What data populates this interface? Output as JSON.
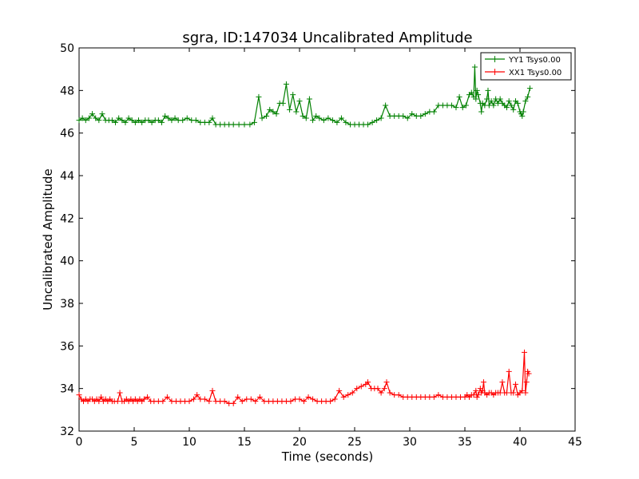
{
  "chart_data": {
    "type": "line",
    "title": "sgra, ID:147034 Uncalibrated Amplitude",
    "xlabel": "Time (seconds)",
    "ylabel": "Uncalibrated Amplitude",
    "xlim": [
      0,
      45
    ],
    "ylim": [
      32,
      50
    ],
    "xticks": [
      0,
      5,
      10,
      15,
      20,
      25,
      30,
      35,
      40,
      45
    ],
    "yticks": [
      32,
      34,
      36,
      38,
      40,
      42,
      44,
      46,
      48,
      50
    ],
    "legend_position": "top-right",
    "grid": false,
    "series": [
      {
        "name": "YY1 Tsys0.00",
        "color": "#008000",
        "marker": "+",
        "points": [
          [
            0.0,
            46.6
          ],
          [
            0.3,
            46.7
          ],
          [
            0.6,
            46.6
          ],
          [
            0.9,
            46.7
          ],
          [
            1.2,
            46.9
          ],
          [
            1.5,
            46.7
          ],
          [
            1.8,
            46.6
          ],
          [
            2.1,
            46.9
          ],
          [
            2.4,
            46.6
          ],
          [
            2.7,
            46.6
          ],
          [
            3.0,
            46.6
          ],
          [
            3.3,
            46.5
          ],
          [
            3.6,
            46.7
          ],
          [
            3.9,
            46.6
          ],
          [
            4.2,
            46.5
          ],
          [
            4.5,
            46.7
          ],
          [
            4.8,
            46.6
          ],
          [
            5.1,
            46.5
          ],
          [
            5.4,
            46.6
          ],
          [
            5.7,
            46.5
          ],
          [
            6.0,
            46.6
          ],
          [
            6.3,
            46.6
          ],
          [
            6.6,
            46.5
          ],
          [
            6.9,
            46.6
          ],
          [
            7.2,
            46.6
          ],
          [
            7.5,
            46.5
          ],
          [
            7.8,
            46.8
          ],
          [
            8.1,
            46.7
          ],
          [
            8.4,
            46.6
          ],
          [
            8.7,
            46.7
          ],
          [
            9.0,
            46.6
          ],
          [
            9.4,
            46.6
          ],
          [
            9.8,
            46.7
          ],
          [
            10.2,
            46.6
          ],
          [
            10.6,
            46.6
          ],
          [
            11.0,
            46.5
          ],
          [
            11.4,
            46.5
          ],
          [
            11.8,
            46.5
          ],
          [
            12.1,
            46.7
          ],
          [
            12.4,
            46.4
          ],
          [
            12.8,
            46.4
          ],
          [
            13.2,
            46.4
          ],
          [
            13.6,
            46.4
          ],
          [
            14.0,
            46.4
          ],
          [
            14.5,
            46.4
          ],
          [
            15.0,
            46.4
          ],
          [
            15.5,
            46.4
          ],
          [
            15.9,
            46.5
          ],
          [
            16.3,
            47.7
          ],
          [
            16.6,
            46.7
          ],
          [
            17.0,
            46.8
          ],
          [
            17.3,
            47.1
          ],
          [
            17.6,
            47.0
          ],
          [
            17.9,
            46.9
          ],
          [
            18.2,
            47.4
          ],
          [
            18.5,
            47.4
          ],
          [
            18.8,
            48.3
          ],
          [
            19.1,
            47.1
          ],
          [
            19.4,
            47.8
          ],
          [
            19.7,
            47.0
          ],
          [
            20.0,
            47.5
          ],
          [
            20.3,
            46.8
          ],
          [
            20.6,
            46.7
          ],
          [
            20.9,
            47.6
          ],
          [
            21.2,
            46.6
          ],
          [
            21.5,
            46.8
          ],
          [
            21.8,
            46.7
          ],
          [
            22.2,
            46.6
          ],
          [
            22.6,
            46.7
          ],
          [
            23.0,
            46.6
          ],
          [
            23.4,
            46.5
          ],
          [
            23.8,
            46.7
          ],
          [
            24.2,
            46.5
          ],
          [
            24.6,
            46.4
          ],
          [
            25.0,
            46.4
          ],
          [
            25.4,
            46.4
          ],
          [
            25.8,
            46.4
          ],
          [
            26.2,
            46.4
          ],
          [
            26.6,
            46.5
          ],
          [
            27.0,
            46.6
          ],
          [
            27.4,
            46.7
          ],
          [
            27.8,
            47.3
          ],
          [
            28.2,
            46.8
          ],
          [
            28.6,
            46.8
          ],
          [
            29.0,
            46.8
          ],
          [
            29.4,
            46.8
          ],
          [
            29.8,
            46.7
          ],
          [
            30.2,
            46.9
          ],
          [
            30.6,
            46.8
          ],
          [
            31.0,
            46.8
          ],
          [
            31.4,
            46.9
          ],
          [
            31.8,
            47.0
          ],
          [
            32.2,
            47.0
          ],
          [
            32.6,
            47.3
          ],
          [
            33.0,
            47.3
          ],
          [
            33.4,
            47.3
          ],
          [
            33.8,
            47.3
          ],
          [
            34.2,
            47.2
          ],
          [
            34.5,
            47.7
          ],
          [
            34.8,
            47.2
          ],
          [
            35.1,
            47.3
          ],
          [
            35.4,
            47.8
          ],
          [
            35.6,
            47.9
          ],
          [
            35.8,
            47.7
          ],
          [
            35.9,
            49.1
          ],
          [
            36.0,
            47.6
          ],
          [
            36.1,
            48.0
          ],
          [
            36.2,
            47.8
          ],
          [
            36.4,
            47.4
          ],
          [
            36.5,
            47.0
          ],
          [
            36.6,
            47.4
          ],
          [
            36.8,
            47.3
          ],
          [
            37.0,
            47.6
          ],
          [
            37.1,
            48.0
          ],
          [
            37.2,
            47.3
          ],
          [
            37.4,
            47.5
          ],
          [
            37.6,
            47.3
          ],
          [
            37.8,
            47.6
          ],
          [
            38.0,
            47.4
          ],
          [
            38.2,
            47.6
          ],
          [
            38.4,
            47.4
          ],
          [
            38.6,
            47.3
          ],
          [
            38.8,
            47.2
          ],
          [
            39.0,
            47.5
          ],
          [
            39.2,
            47.3
          ],
          [
            39.4,
            47.1
          ],
          [
            39.6,
            47.5
          ],
          [
            39.8,
            47.4
          ],
          [
            40.0,
            47.0
          ],
          [
            40.1,
            46.9
          ],
          [
            40.2,
            46.8
          ],
          [
            40.3,
            47.0
          ],
          [
            40.5,
            47.5
          ],
          [
            40.7,
            47.7
          ],
          [
            40.9,
            48.1
          ]
        ]
      },
      {
        "name": "XX1 Tsys0.00",
        "color": "#ff0000",
        "marker": "+",
        "points": [
          [
            0.0,
            33.7
          ],
          [
            0.2,
            33.5
          ],
          [
            0.4,
            33.4
          ],
          [
            0.6,
            33.5
          ],
          [
            0.8,
            33.4
          ],
          [
            1.0,
            33.5
          ],
          [
            1.2,
            33.5
          ],
          [
            1.4,
            33.4
          ],
          [
            1.6,
            33.5
          ],
          [
            1.8,
            33.4
          ],
          [
            2.0,
            33.6
          ],
          [
            2.2,
            33.4
          ],
          [
            2.4,
            33.5
          ],
          [
            2.6,
            33.4
          ],
          [
            2.8,
            33.5
          ],
          [
            3.0,
            33.4
          ],
          [
            3.2,
            33.4
          ],
          [
            3.5,
            33.4
          ],
          [
            3.7,
            33.8
          ],
          [
            3.9,
            33.4
          ],
          [
            4.1,
            33.4
          ],
          [
            4.3,
            33.5
          ],
          [
            4.5,
            33.4
          ],
          [
            4.7,
            33.5
          ],
          [
            4.9,
            33.4
          ],
          [
            5.1,
            33.5
          ],
          [
            5.3,
            33.4
          ],
          [
            5.5,
            33.5
          ],
          [
            5.7,
            33.4
          ],
          [
            5.9,
            33.5
          ],
          [
            6.2,
            33.6
          ],
          [
            6.5,
            33.4
          ],
          [
            6.8,
            33.4
          ],
          [
            7.2,
            33.4
          ],
          [
            7.6,
            33.4
          ],
          [
            8.0,
            33.6
          ],
          [
            8.4,
            33.4
          ],
          [
            8.8,
            33.4
          ],
          [
            9.2,
            33.4
          ],
          [
            9.6,
            33.4
          ],
          [
            10.0,
            33.4
          ],
          [
            10.4,
            33.5
          ],
          [
            10.7,
            33.7
          ],
          [
            11.0,
            33.5
          ],
          [
            11.4,
            33.5
          ],
          [
            11.8,
            33.4
          ],
          [
            12.1,
            33.9
          ],
          [
            12.4,
            33.4
          ],
          [
            12.8,
            33.4
          ],
          [
            13.2,
            33.4
          ],
          [
            13.6,
            33.3
          ],
          [
            14.0,
            33.3
          ],
          [
            14.4,
            33.6
          ],
          [
            14.8,
            33.4
          ],
          [
            15.2,
            33.5
          ],
          [
            15.6,
            33.5
          ],
          [
            16.0,
            33.4
          ],
          [
            16.4,
            33.6
          ],
          [
            16.8,
            33.4
          ],
          [
            17.2,
            33.4
          ],
          [
            17.6,
            33.4
          ],
          [
            18.0,
            33.4
          ],
          [
            18.4,
            33.4
          ],
          [
            18.8,
            33.4
          ],
          [
            19.2,
            33.4
          ],
          [
            19.6,
            33.5
          ],
          [
            20.0,
            33.5
          ],
          [
            20.4,
            33.4
          ],
          [
            20.8,
            33.6
          ],
          [
            21.2,
            33.5
          ],
          [
            21.6,
            33.4
          ],
          [
            22.0,
            33.4
          ],
          [
            22.4,
            33.4
          ],
          [
            22.8,
            33.4
          ],
          [
            23.2,
            33.5
          ],
          [
            23.6,
            33.9
          ],
          [
            24.0,
            33.6
          ],
          [
            24.4,
            33.7
          ],
          [
            24.8,
            33.8
          ],
          [
            25.2,
            34.0
          ],
          [
            25.6,
            34.1
          ],
          [
            26.0,
            34.2
          ],
          [
            26.2,
            34.3
          ],
          [
            26.5,
            34.0
          ],
          [
            26.8,
            34.0
          ],
          [
            27.1,
            34.0
          ],
          [
            27.4,
            33.8
          ],
          [
            27.7,
            34.0
          ],
          [
            27.9,
            34.3
          ],
          [
            28.2,
            33.8
          ],
          [
            28.6,
            33.7
          ],
          [
            29.0,
            33.7
          ],
          [
            29.4,
            33.6
          ],
          [
            29.8,
            33.6
          ],
          [
            30.2,
            33.6
          ],
          [
            30.6,
            33.6
          ],
          [
            31.0,
            33.6
          ],
          [
            31.4,
            33.6
          ],
          [
            31.8,
            33.6
          ],
          [
            32.2,
            33.6
          ],
          [
            32.6,
            33.7
          ],
          [
            33.0,
            33.6
          ],
          [
            33.4,
            33.6
          ],
          [
            33.8,
            33.6
          ],
          [
            34.2,
            33.6
          ],
          [
            34.6,
            33.6
          ],
          [
            35.0,
            33.6
          ],
          [
            35.2,
            33.7
          ],
          [
            35.4,
            33.6
          ],
          [
            35.6,
            33.7
          ],
          [
            35.8,
            33.7
          ],
          [
            36.0,
            33.9
          ],
          [
            36.1,
            33.6
          ],
          [
            36.2,
            33.7
          ],
          [
            36.4,
            34.0
          ],
          [
            36.5,
            33.8
          ],
          [
            36.6,
            33.9
          ],
          [
            36.7,
            34.3
          ],
          [
            36.8,
            33.8
          ],
          [
            37.0,
            33.7
          ],
          [
            37.2,
            33.8
          ],
          [
            37.4,
            33.8
          ],
          [
            37.6,
            33.7
          ],
          [
            37.8,
            33.8
          ],
          [
            38.0,
            33.8
          ],
          [
            38.2,
            33.8
          ],
          [
            38.4,
            34.3
          ],
          [
            38.6,
            33.8
          ],
          [
            38.8,
            33.8
          ],
          [
            39.0,
            34.8
          ],
          [
            39.2,
            33.8
          ],
          [
            39.4,
            33.8
          ],
          [
            39.6,
            34.2
          ],
          [
            39.8,
            33.7
          ],
          [
            40.0,
            33.8
          ],
          [
            40.2,
            33.9
          ],
          [
            40.4,
            35.7
          ],
          [
            40.5,
            33.8
          ],
          [
            40.6,
            34.3
          ],
          [
            40.7,
            34.8
          ],
          [
            40.8,
            34.7
          ]
        ]
      }
    ]
  }
}
